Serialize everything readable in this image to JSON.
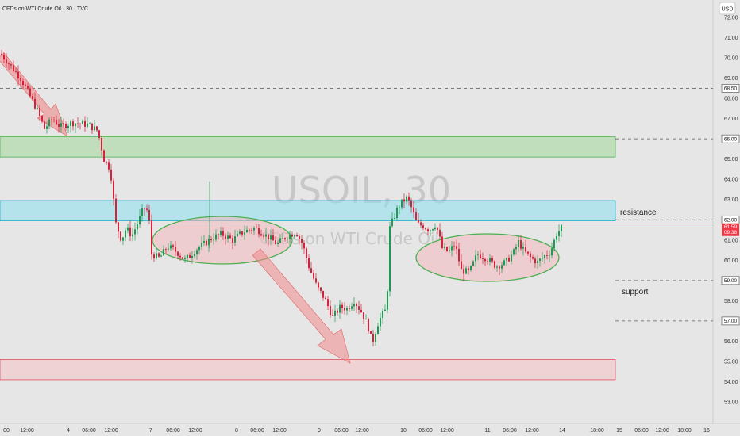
{
  "header": {
    "symbol_title": "CFDs on WTI Crude Oil · 30 · TVC"
  },
  "currency_button": "USD",
  "watermark": {
    "main": "USOIL, 30",
    "sub": "CFDs on WTI Crude Oil"
  },
  "colors": {
    "bull": "#1e9a55",
    "bear": "#d4223a",
    "resistance_zone": "#8ce0ee",
    "supply_zone": "#a8d8a0",
    "demand_zone": "#f4c4c8",
    "ellipse_fill": "#f2b8bc",
    "ellipse_stroke": "#4caf50",
    "arrow": "#f08a8a",
    "current_price": "#f23645"
  },
  "chart_data": {
    "type": "candlestick",
    "title": "CFDs on WTI Crude Oil · 30 · TVC",
    "currency": "USD",
    "ylim": [
      52.5,
      72.8
    ],
    "y_ticks": [
      "72.00",
      "71.00",
      "70.00",
      "69.00",
      "68.00",
      "67.00",
      "66.00",
      "65.00",
      "64.00",
      "63.00",
      "62.00",
      "61.00",
      "60.00",
      "59.00",
      "58.00",
      "57.00",
      "56.00",
      "55.00",
      "54.00",
      "53.00"
    ],
    "x_ticks": [
      "00",
      "12:00",
      "4",
      "06:00",
      "12:00",
      "7",
      "06:00",
      "12:00",
      "8",
      "06:00",
      "12:00",
      "9",
      "06:00",
      "12:00",
      "10",
      "06:00",
      "12:00",
      "11",
      "06:00",
      "12:00",
      "14",
      "18:00",
      "15",
      "06:00",
      "12:00",
      "18:00",
      "16"
    ],
    "price_anchors": [
      [
        0,
        70.2
      ],
      [
        25,
        69.0
      ],
      [
        45,
        67.5
      ],
      [
        55,
        66.5
      ],
      [
        65,
        67.0
      ],
      [
        75,
        66.6
      ],
      [
        90,
        66.8
      ],
      [
        110,
        66.7
      ],
      [
        122,
        66.4
      ],
      [
        130,
        65.0
      ],
      [
        138,
        64.5
      ],
      [
        145,
        61.8
      ],
      [
        152,
        61.0
      ],
      [
        158,
        61.6
      ],
      [
        165,
        61.2
      ],
      [
        172,
        61.8
      ],
      [
        180,
        62.6
      ],
      [
        186,
        62.4
      ],
      [
        190,
        60.3
      ],
      [
        200,
        60.1
      ],
      [
        210,
        60.7
      ],
      [
        222,
        60.4
      ],
      [
        232,
        60.0
      ],
      [
        240,
        60.3
      ],
      [
        248,
        60.6
      ],
      [
        256,
        60.8
      ],
      [
        266,
        61.1
      ],
      [
        278,
        61.3
      ],
      [
        292,
        61.0
      ],
      [
        305,
        61.4
      ],
      [
        320,
        61.6
      ],
      [
        335,
        61.2
      ],
      [
        348,
        60.8
      ],
      [
        360,
        61.2
      ],
      [
        372,
        61.4
      ],
      [
        380,
        60.8
      ],
      [
        388,
        59.7
      ],
      [
        398,
        58.7
      ],
      [
        408,
        58.1
      ],
      [
        418,
        57.2
      ],
      [
        428,
        57.7
      ],
      [
        436,
        57.6
      ],
      [
        445,
        58.0
      ],
      [
        455,
        57.4
      ],
      [
        462,
        56.8
      ],
      [
        468,
        55.9
      ],
      [
        474,
        56.8
      ],
      [
        480,
        57.3
      ],
      [
        486,
        57.6
      ],
      [
        490,
        61.6
      ],
      [
        495,
        62.1
      ],
      [
        500,
        62.6
      ],
      [
        506,
        62.9
      ],
      [
        512,
        63.1
      ],
      [
        518,
        62.5
      ],
      [
        524,
        61.8
      ],
      [
        532,
        61.7
      ],
      [
        540,
        61.5
      ],
      [
        548,
        61.8
      ],
      [
        556,
        60.6
      ],
      [
        564,
        60.4
      ],
      [
        572,
        60.8
      ],
      [
        580,
        59.5
      ],
      [
        590,
        59.4
      ],
      [
        600,
        60.3
      ],
      [
        612,
        60.1
      ],
      [
        624,
        59.7
      ],
      [
        636,
        59.9
      ],
      [
        646,
        60.4
      ],
      [
        652,
        60.9
      ],
      [
        660,
        60.4
      ],
      [
        668,
        60.1
      ],
      [
        676,
        59.9
      ],
      [
        684,
        60.2
      ],
      [
        692,
        60.4
      ],
      [
        700,
        61.3
      ],
      [
        706,
        61.6
      ]
    ],
    "zones": [
      {
        "name": "supply-zone",
        "from": 65.1,
        "to": 66.1
      },
      {
        "name": "resistance-zone",
        "from": 61.95,
        "to": 62.95
      },
      {
        "name": "demand-zone",
        "from": 54.1,
        "to": 55.1
      }
    ],
    "horizontal_levels": [
      {
        "price": 68.5,
        "label": "68.50"
      },
      {
        "price": 66.0,
        "label": "66.00"
      },
      {
        "price": 62.0,
        "label": "62.00"
      },
      {
        "price": 59.0,
        "label": "59.00"
      },
      {
        "price": 57.0,
        "label": "57.00"
      }
    ],
    "annotations": {
      "resistance": "resistance",
      "support": "support"
    },
    "current_price": {
      "value": "61.59",
      "countdown": "09:38"
    }
  }
}
